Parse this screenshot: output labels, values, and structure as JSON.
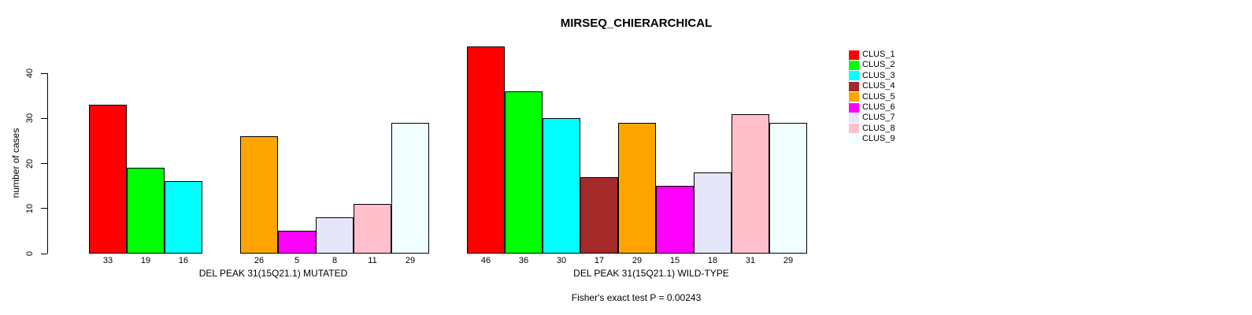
{
  "title": "MIRSEQ_CHIERARCHICAL",
  "chart_data": {
    "type": "bar",
    "title": "MIRSEQ_CHIERARCHICAL",
    "ylabel": "number of cases",
    "xlabel": "",
    "ylim": [
      0,
      40
    ],
    "yticks": [
      0,
      10,
      20,
      30,
      40
    ],
    "grid": false,
    "legend_position": "right",
    "legend": [
      {
        "label": "CLUS_1",
        "color": "#ff0000"
      },
      {
        "label": "CLUS_2",
        "color": "#00ff00"
      },
      {
        "label": "CLUS_3",
        "color": "#00ffff"
      },
      {
        "label": "CLUS_4",
        "color": "#a52a2a"
      },
      {
        "label": "CLUS_5",
        "color": "#ffa500"
      },
      {
        "label": "CLUS_6",
        "color": "#ff00ff"
      },
      {
        "label": "CLUS_7",
        "color": "#e6e6fa"
      },
      {
        "label": "CLUS_8",
        "color": "#ffc0cb"
      },
      {
        "label": "CLUS_9",
        "color": "#f0ffff"
      }
    ],
    "groups": [
      {
        "label": "DEL PEAK 31(15Q21.1) MUTATED",
        "values": [
          33,
          19,
          16,
          null,
          26,
          5,
          8,
          11,
          29
        ]
      },
      {
        "label": "DEL PEAK 31(15Q21.1) WILD-TYPE",
        "values": [
          46,
          36,
          30,
          17,
          29,
          15,
          18,
          31,
          29
        ]
      }
    ],
    "annotation": "Fisher's exact test P = 0.00243"
  }
}
